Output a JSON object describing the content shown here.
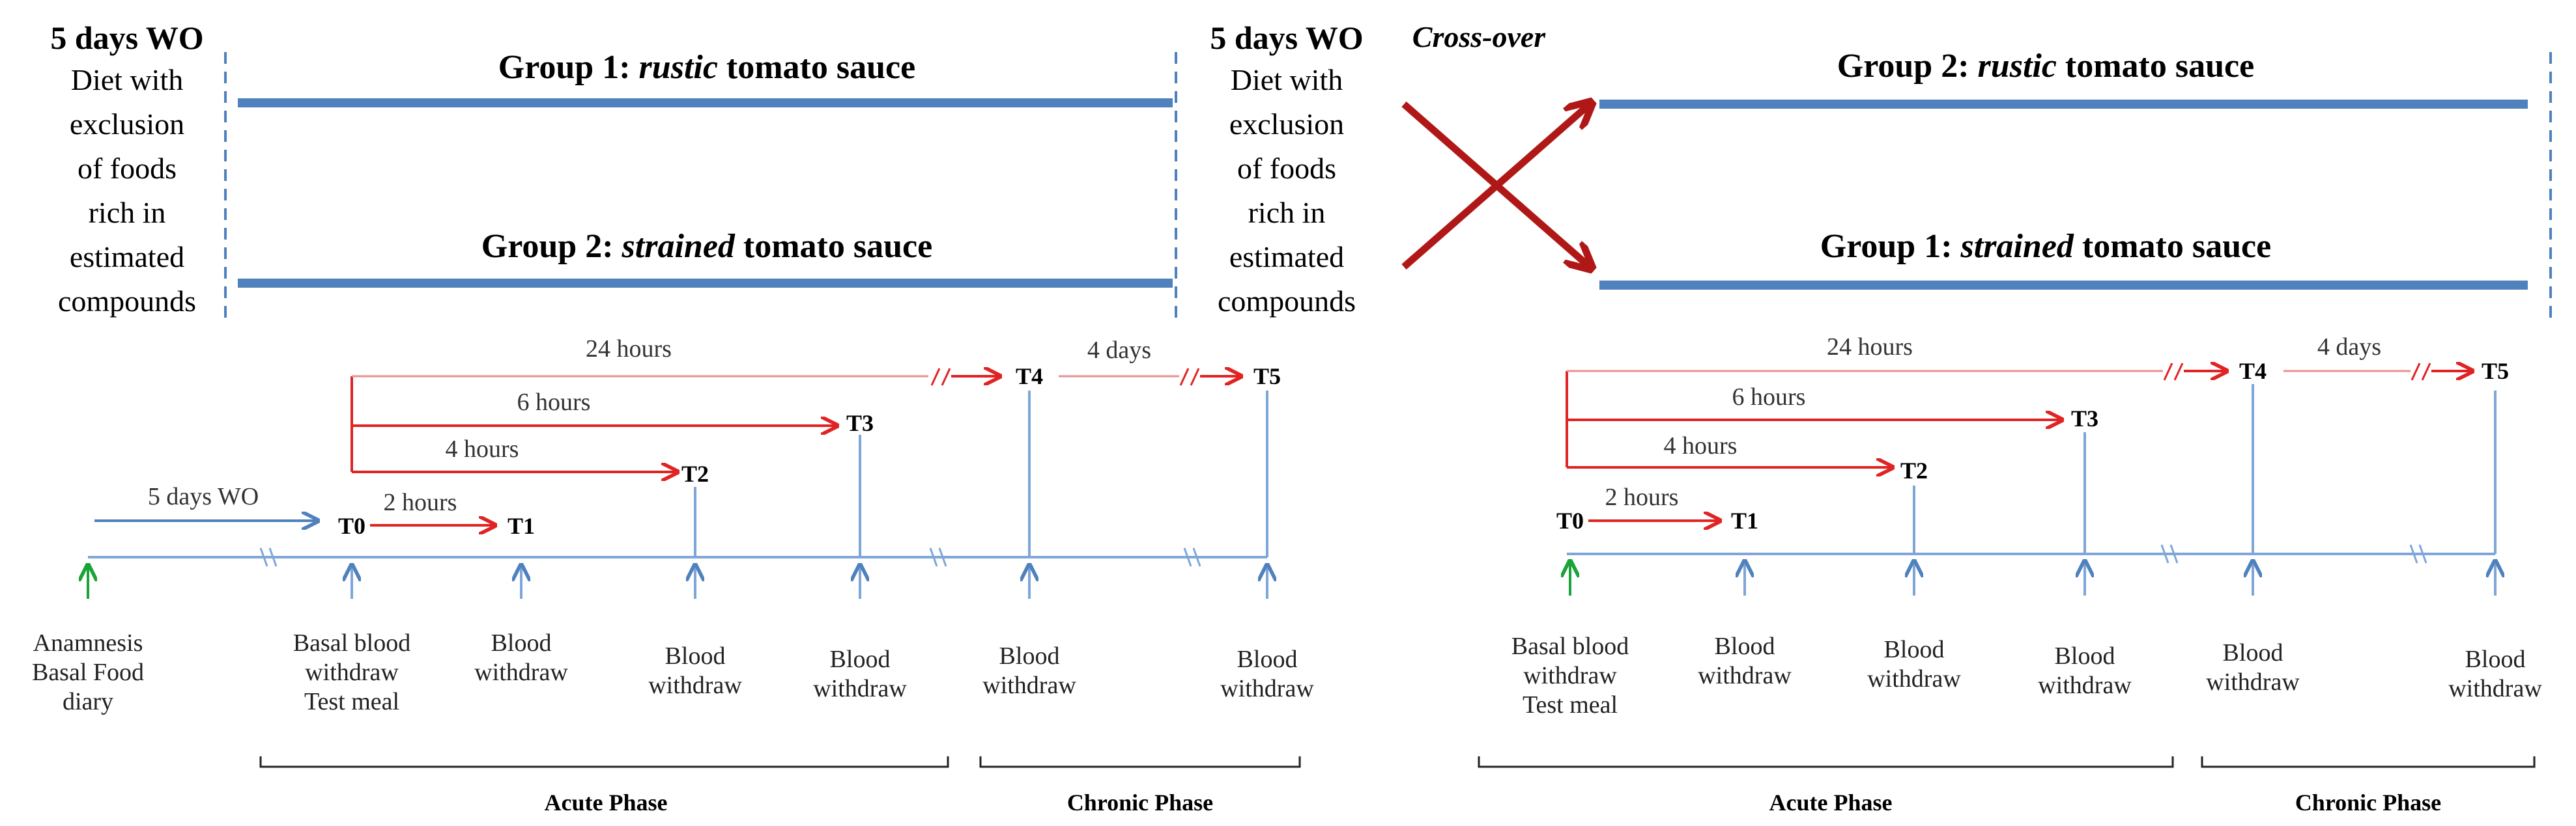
{
  "colors": {
    "blue": "#4f81bd",
    "light_blue": "#7ea6d8",
    "red": "#e02424",
    "dark_red": "#b01818",
    "green": "#1aa337",
    "black": "#222222"
  },
  "top": {
    "left": {
      "washout": "5 days WO",
      "diet_lines": [
        "Diet with",
        "exclusion",
        "of foods",
        "rich in",
        "estimated",
        "compounds"
      ],
      "group_a": {
        "prefix": "Group 1: ",
        "italic": "rustic",
        "suffix": " tomato sauce"
      },
      "group_b": {
        "prefix": "Group 2: ",
        "italic": "strained",
        "suffix": " tomato sauce"
      }
    },
    "middle": {
      "washout": "5 days WO",
      "crossover": "Cross-over",
      "diet_lines": [
        "Diet with",
        "exclusion",
        "of foods",
        "rich in",
        "estimated",
        "compounds"
      ]
    },
    "right": {
      "group_a": {
        "prefix": "Group 2: ",
        "italic": "rustic",
        "suffix": " tomato sauce"
      },
      "group_b": {
        "prefix": "Group 1: ",
        "italic": "strained",
        "suffix": " tomato sauce"
      }
    }
  },
  "left_timeline": {
    "durations": {
      "wo": "5 days WO",
      "h2": "2 hours",
      "h4": "4 hours",
      "h6": "6 hours",
      "h24": "24 hours",
      "d4": "4 days"
    },
    "timepoints": [
      "T0",
      "T1",
      "T2",
      "T3",
      "T4",
      "T5"
    ],
    "labels": [
      [
        "Anamnesis",
        "Basal Food",
        "diary"
      ],
      [
        "Basal blood",
        "withdraw",
        "Test meal"
      ],
      [
        "Blood",
        "withdraw"
      ],
      [
        "Blood",
        "withdraw"
      ],
      [
        "Blood",
        "withdraw"
      ],
      [
        "Blood",
        "withdraw"
      ],
      [
        "Blood",
        "withdraw"
      ]
    ],
    "acute_phase": "Acute Phase",
    "chronic_phase": "Chronic Phase"
  },
  "right_timeline": {
    "durations": {
      "h2": "2 hours",
      "h4": "4 hours",
      "h6": "6 hours",
      "h24": "24 hours",
      "d4": "4 days"
    },
    "timepoints": [
      "T0",
      "T1",
      "T2",
      "T3",
      "T4",
      "T5"
    ],
    "labels": [
      [
        "Basal blood",
        "withdraw",
        "Test meal"
      ],
      [
        "Blood",
        "withdraw"
      ],
      [
        "Blood",
        "withdraw"
      ],
      [
        "Blood",
        "withdraw"
      ],
      [
        "Blood",
        "withdraw"
      ],
      [
        "Blood",
        "withdraw"
      ]
    ],
    "acute_phase": "Acute Phase",
    "chronic_phase": "Chronic Phase"
  }
}
